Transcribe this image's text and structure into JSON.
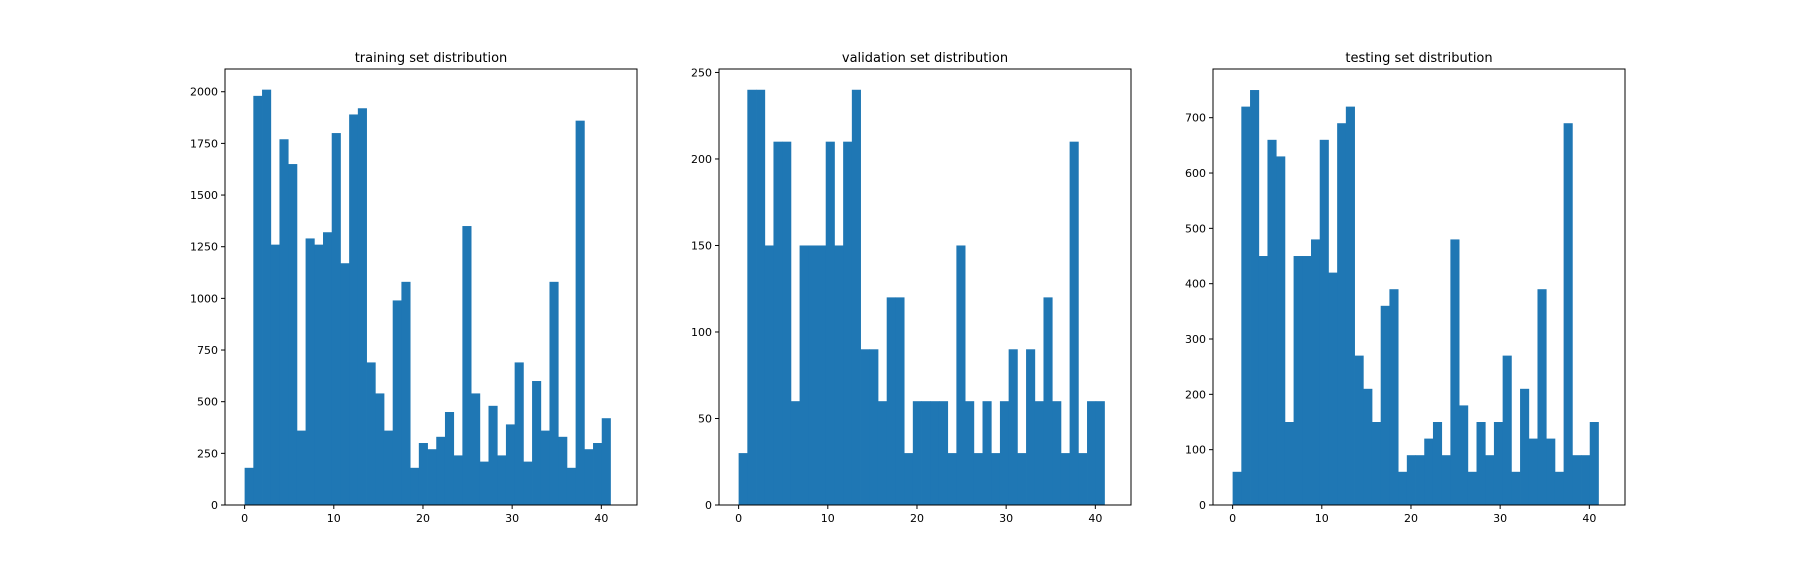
{
  "colors": {
    "bar": "#1f77b4",
    "axis": "#000000",
    "background": "#ffffff"
  },
  "chart_data": [
    {
      "type": "bar",
      "title": "training set distribution",
      "xlabel": "",
      "ylabel": "",
      "grid": false,
      "x": [
        0,
        1,
        2,
        3,
        4,
        5,
        6,
        7,
        8,
        9,
        10,
        11,
        12,
        13,
        14,
        15,
        16,
        17,
        18,
        19,
        20,
        21,
        22,
        23,
        24,
        25,
        26,
        27,
        28,
        29,
        30,
        31,
        32,
        33,
        34,
        35,
        36,
        37,
        38,
        39,
        40,
        41,
        42
      ],
      "values": [
        180,
        1980,
        2010,
        1260,
        1770,
        1650,
        360,
        1290,
        1260,
        1320,
        1800,
        1170,
        1890,
        1920,
        690,
        540,
        360,
        990,
        1080,
        180,
        300,
        270,
        330,
        450,
        240,
        1350,
        540,
        210,
        480,
        240,
        390,
        690,
        210,
        600,
        360,
        1080,
        330,
        180,
        1860,
        270,
        300,
        420,
        0
      ],
      "xlim": [
        -2.2,
        44
      ],
      "ylim": [
        0,
        2110
      ],
      "xticks": [
        0,
        10,
        20,
        30,
        40
      ],
      "xtick_labels": [
        "0",
        "10",
        "20",
        "30",
        "40"
      ],
      "yticks": [
        0,
        250,
        500,
        750,
        1000,
        1250,
        1500,
        1750,
        2000
      ],
      "ytick_labels": [
        "0",
        "250",
        "500",
        "750",
        "1000",
        "1250",
        "1500",
        "1750",
        "2000"
      ]
    },
    {
      "type": "bar",
      "title": "validation set distribution",
      "xlabel": "",
      "ylabel": "",
      "grid": false,
      "x": [
        0,
        1,
        2,
        3,
        4,
        5,
        6,
        7,
        8,
        9,
        10,
        11,
        12,
        13,
        14,
        15,
        16,
        17,
        18,
        19,
        20,
        21,
        22,
        23,
        24,
        25,
        26,
        27,
        28,
        29,
        30,
        31,
        32,
        33,
        34,
        35,
        36,
        37,
        38,
        39,
        40,
        41,
        42
      ],
      "values": [
        30,
        240,
        240,
        150,
        210,
        210,
        60,
        150,
        150,
        150,
        210,
        150,
        210,
        240,
        90,
        90,
        60,
        120,
        120,
        30,
        60,
        60,
        60,
        60,
        30,
        150,
        60,
        30,
        60,
        30,
        60,
        90,
        30,
        90,
        60,
        120,
        60,
        30,
        210,
        30,
        60,
        60,
        0
      ],
      "xlim": [
        -2.2,
        44
      ],
      "ylim": [
        0,
        252
      ],
      "xticks": [
        0,
        10,
        20,
        30,
        40
      ],
      "xtick_labels": [
        "0",
        "10",
        "20",
        "30",
        "40"
      ],
      "yticks": [
        0,
        50,
        100,
        150,
        200,
        250
      ],
      "ytick_labels": [
        "0",
        "50",
        "100",
        "150",
        "200",
        "250"
      ]
    },
    {
      "type": "bar",
      "title": "testing set distribution",
      "xlabel": "",
      "ylabel": "",
      "grid": false,
      "x": [
        0,
        1,
        2,
        3,
        4,
        5,
        6,
        7,
        8,
        9,
        10,
        11,
        12,
        13,
        14,
        15,
        16,
        17,
        18,
        19,
        20,
        21,
        22,
        23,
        24,
        25,
        26,
        27,
        28,
        29,
        30,
        31,
        32,
        33,
        34,
        35,
        36,
        37,
        38,
        39,
        40,
        41,
        42
      ],
      "values": [
        60,
        720,
        750,
        450,
        660,
        630,
        150,
        450,
        450,
        480,
        660,
        420,
        690,
        720,
        270,
        210,
        150,
        360,
        390,
        60,
        90,
        90,
        120,
        150,
        90,
        480,
        180,
        60,
        150,
        90,
        150,
        270,
        60,
        210,
        120,
        390,
        120,
        60,
        690,
        90,
        90,
        150,
        0
      ],
      "xlim": [
        -2.2,
        44
      ],
      "ylim": [
        0,
        788
      ],
      "xticks": [
        0,
        10,
        20,
        30,
        40
      ],
      "xtick_labels": [
        "0",
        "10",
        "20",
        "30",
        "40"
      ],
      "yticks": [
        0,
        100,
        200,
        300,
        400,
        500,
        600,
        700
      ],
      "ytick_labels": [
        "0",
        "100",
        "200",
        "300",
        "400",
        "500",
        "600",
        "700"
      ]
    }
  ]
}
